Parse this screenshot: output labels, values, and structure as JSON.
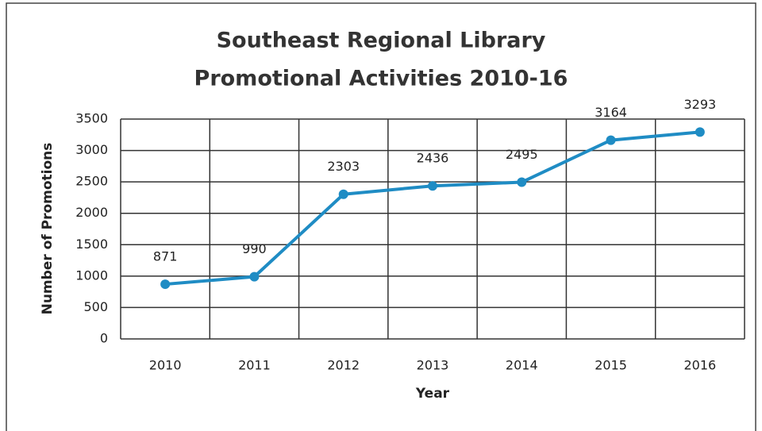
{
  "chart_data": {
    "type": "line",
    "title": [
      "Southeast Regional Library",
      "Promotional Activities 2010-16"
    ],
    "xlabel": "Year",
    "ylabel": "Number of Promotions",
    "categories": [
      "2010",
      "2011",
      "2012",
      "2013",
      "2014",
      "2015",
      "2016"
    ],
    "series": [
      {
        "name": "Promotions",
        "color": "#1f8cc4",
        "values": [
          871,
          990,
          2303,
          2436,
          2495,
          3164,
          3293
        ]
      }
    ],
    "ylim": [
      0,
      3500
    ],
    "yticks": [
      0,
      500,
      1000,
      1500,
      2000,
      2500,
      3000,
      3500
    ],
    "grid": true
  }
}
